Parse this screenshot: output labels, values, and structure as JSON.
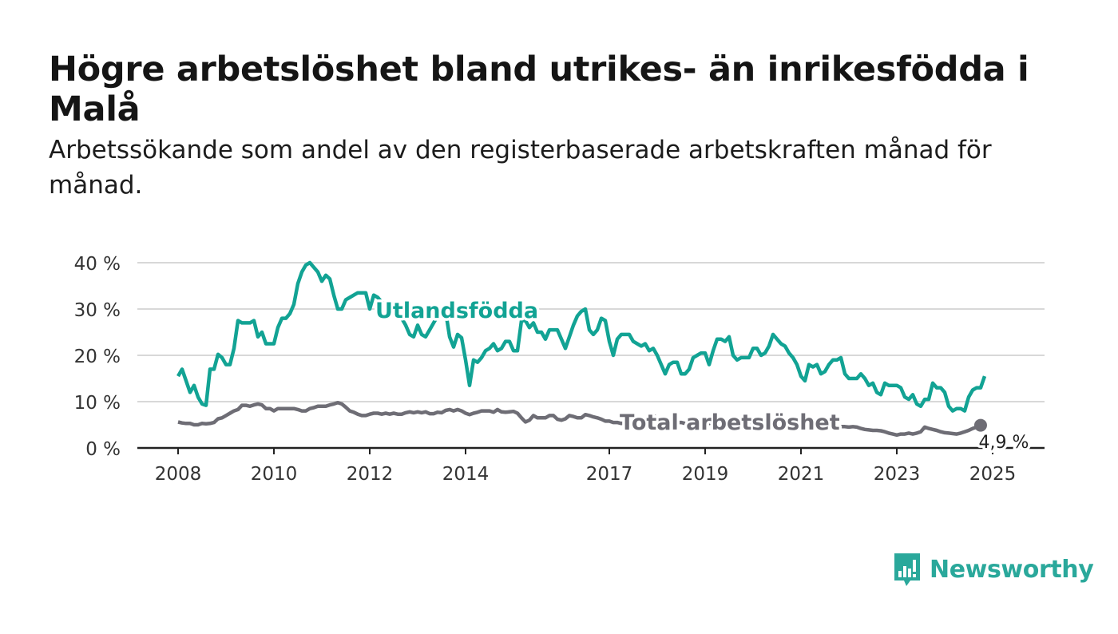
{
  "header": {
    "title": "Högre arbetslöshet bland utrikes- än inrikesfödda i Malå",
    "subtitle": "Arbetssökande som andel av den registerbaserade arbetskraften månad för månad."
  },
  "brand": {
    "name": "Newsworthy",
    "color": "#2aa89b",
    "icon": "bar-chart-speech-bubble-icon"
  },
  "chart_data": {
    "type": "line",
    "title": "Högre arbetslöshet bland utrikes- än inrikesfödda i Malå",
    "subtitle": "Arbetssökande som andel av den registerbaserade arbetskraften månad för månad.",
    "ylim": [
      0,
      40
    ],
    "yticks": [
      0,
      10,
      20,
      30,
      40
    ],
    "ytick_labels": [
      "0 %",
      "10 %",
      "20 %",
      "30 %",
      "40 %"
    ],
    "xlim": [
      2007.8,
      2026.0
    ],
    "xticks": [
      2008,
      2010,
      2012,
      2014,
      2017,
      2019,
      2021,
      2023,
      2025
    ],
    "xtick_labels": [
      "2008",
      "2010",
      "2012",
      "2014",
      "2017",
      "2019",
      "2021",
      "2023",
      "2025"
    ],
    "grid": true,
    "series": [
      {
        "name": "Utlandsfödda",
        "color": "#12a394",
        "x_start": 2008.0,
        "step": 0.08333,
        "values": [
          15.5,
          17.0,
          14.5,
          12.0,
          13.5,
          11.0,
          9.5,
          9.2,
          17.0,
          17.0,
          20.2,
          19.5,
          18.0,
          18.0,
          21.5,
          27.5,
          27.0,
          27.0,
          27.0,
          27.5,
          24.0,
          25.0,
          22.5,
          22.5,
          22.5,
          26.0,
          28.0,
          28.0,
          29.0,
          31.0,
          35.5,
          38.0,
          39.5,
          40.0,
          39.0,
          38.0,
          36.0,
          37.3,
          36.5,
          33.0,
          30.0,
          30.0,
          32.0,
          32.5,
          33.0,
          33.5,
          33.5,
          33.5,
          30.0,
          33.0,
          32.5,
          31.5,
          31.0,
          30.0,
          29.5,
          29.0,
          28.0,
          26.5,
          24.5,
          24.0,
          26.5,
          24.5,
          24.0,
          25.5,
          27.0,
          28.5,
          28.5,
          29.5,
          24.0,
          21.8,
          24.5,
          23.8,
          19.0,
          13.5,
          19.0,
          18.5,
          19.5,
          21.0,
          21.5,
          22.5,
          21.0,
          21.5,
          23.0,
          23.0,
          21.0,
          21.0,
          27.5,
          27.5,
          26.0,
          27.0,
          25.0,
          25.0,
          23.5,
          25.5,
          25.5,
          25.5,
          23.5,
          21.5,
          24.0,
          26.5,
          28.5,
          29.5,
          30.0,
          25.5,
          24.5,
          25.5,
          28.0,
          27.5,
          23.0,
          20.0,
          23.5,
          24.5,
          24.5,
          24.5,
          23.0,
          22.5,
          22.0,
          22.5,
          21.0,
          21.5,
          20.0,
          18.0,
          16.0,
          18.0,
          18.5,
          18.5,
          16.0,
          16.0,
          17.0,
          19.5,
          20.0,
          20.5,
          20.5,
          18.0,
          21.0,
          23.5,
          23.5,
          23.0,
          24.0,
          20.0,
          19.0,
          19.5,
          19.5,
          19.5,
          21.5,
          21.5,
          20.0,
          20.5,
          22.0,
          24.5,
          23.5,
          22.5,
          22.0,
          20.5,
          19.5,
          18.0,
          15.5,
          14.5,
          18.0,
          17.5,
          18.0,
          16.0,
          16.5,
          18.0,
          19.0,
          19.0,
          19.5,
          16.0,
          15.0,
          15.0,
          15.0,
          16.0,
          15.0,
          13.5,
          14.0,
          12.0,
          11.5,
          14.0,
          13.5,
          13.5,
          13.5,
          13.0,
          11.0,
          10.5,
          11.5,
          9.5,
          9.0,
          10.5,
          10.5,
          14.0,
          13.0,
          13.0,
          12.0,
          9.0,
          8.0,
          8.5,
          8.5,
          8.0,
          11.0,
          12.5,
          13.0,
          13.0,
          15.5
        ]
      },
      {
        "name": "Total arbetslöshet",
        "color": "#6e6d75",
        "x_start": 2008.0,
        "step": 0.08333,
        "values": [
          5.6,
          5.4,
          5.3,
          5.3,
          5.0,
          5.0,
          5.3,
          5.2,
          5.3,
          5.5,
          6.3,
          6.5,
          7.0,
          7.5,
          8.0,
          8.3,
          9.2,
          9.2,
          9.0,
          9.3,
          9.5,
          9.3,
          8.5,
          8.5,
          8.0,
          8.5,
          8.5,
          8.5,
          8.5,
          8.5,
          8.3,
          8.0,
          8.0,
          8.5,
          8.7,
          9.0,
          9.0,
          9.0,
          9.3,
          9.5,
          9.8,
          9.5,
          8.8,
          8.0,
          7.7,
          7.3,
          7.0,
          7.0,
          7.3,
          7.5,
          7.5,
          7.3,
          7.5,
          7.3,
          7.5,
          7.3,
          7.3,
          7.6,
          7.8,
          7.6,
          7.8,
          7.6,
          7.8,
          7.4,
          7.4,
          7.7,
          7.6,
          8.1,
          8.3,
          8.0,
          8.3,
          8.0,
          7.5,
          7.2,
          7.5,
          7.7,
          8.0,
          8.0,
          8.0,
          7.7,
          8.3,
          7.8,
          7.7,
          7.8,
          7.9,
          7.5,
          6.5,
          5.6,
          6.0,
          7.0,
          6.5,
          6.5,
          6.5,
          7.0,
          7.0,
          6.2,
          6.0,
          6.3,
          7.0,
          6.8,
          6.5,
          6.5,
          7.2,
          7.0,
          6.7,
          6.5,
          6.2,
          5.8,
          5.8,
          5.5,
          5.5,
          5.3,
          5.5,
          4.5,
          4.6,
          5.0,
          5.5,
          6.0,
          6.5,
          7.0,
          6.5,
          6.2,
          5.9,
          5.5,
          5.5,
          5.5,
          5.5,
          5.3,
          5.2,
          5.2,
          5.2,
          5.2,
          5.3,
          5.3,
          5.5,
          5.3,
          5.5,
          5.0,
          5.0,
          5.0,
          5.1,
          5.1,
          5.3,
          5.3,
          5.0,
          5.0,
          4.8,
          4.8,
          5.0,
          5.0,
          5.0,
          4.9,
          4.9,
          4.9,
          4.8,
          4.7,
          4.8,
          4.6,
          4.6,
          4.5,
          4.7,
          4.7,
          4.8,
          4.7,
          4.7,
          4.6,
          4.6,
          4.6,
          4.5,
          4.6,
          4.5,
          4.2,
          4.0,
          3.9,
          3.8,
          3.8,
          3.7,
          3.5,
          3.2,
          3.0,
          2.8,
          3.0,
          3.0,
          3.2,
          3.0,
          3.2,
          3.5,
          4.5,
          4.2,
          4.0,
          3.8,
          3.5,
          3.3,
          3.2,
          3.1,
          3.0,
          3.2,
          3.5,
          3.8,
          4.2,
          4.5,
          4.9
        ]
      }
    ],
    "annotations": {
      "series_labels": [
        "Utlandsfödda",
        "Total arbetslöshet"
      ],
      "last_value_label": "4,9 %"
    }
  }
}
